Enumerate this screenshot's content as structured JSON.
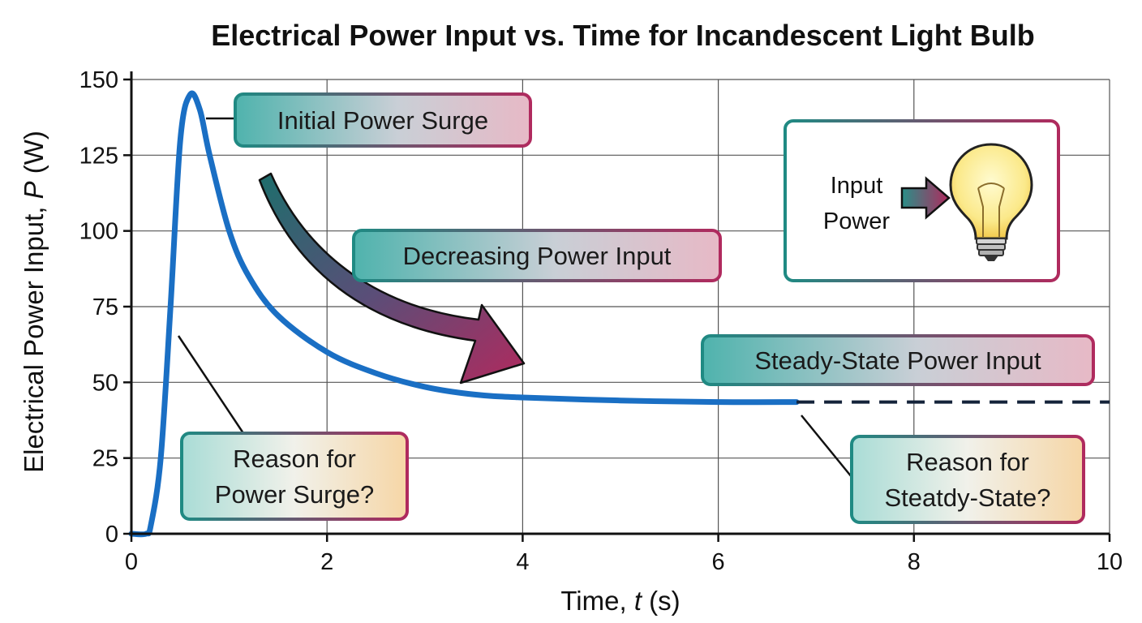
{
  "chart_data": {
    "type": "line",
    "title": "Electrical Power Input vs. Time for Incandescent Light Bulb",
    "xlabel_prefix": "Time, ",
    "xlabel_var": "t",
    "xlabel_suffix": " (s)",
    "ylabel_prefix": "Electrical Power Input, ",
    "ylabel_var": "P",
    "ylabel_suffix": " (W)",
    "xlim": [
      0,
      10
    ],
    "ylim": [
      0,
      150
    ],
    "x_ticks": [
      "0",
      "2",
      "4",
      "6",
      "8",
      "10"
    ],
    "y_ticks": [
      "0",
      "25",
      "50",
      "75",
      "100",
      "125",
      "150"
    ],
    "grid": true,
    "series": [
      {
        "color": "#1a6fc4",
        "x": [
          0,
          0.15,
          0.2,
          0.3,
          0.4,
          0.5,
          0.6,
          0.7,
          0.8,
          1.0,
          1.2,
          1.5,
          2.0,
          2.5,
          3.0,
          3.5,
          4.0,
          5.0,
          6.0,
          6.8
        ],
        "y": [
          0,
          0,
          3,
          25,
          75,
          130,
          145,
          140,
          125,
          100,
          85,
          72,
          60,
          53,
          48.5,
          46,
          45,
          44,
          43.5,
          43.5
        ]
      }
    ],
    "steady_state_dashed": {
      "x": [
        6.8,
        10
      ],
      "y": 43.5,
      "color": "#14233a"
    },
    "annotations": [
      {
        "text": [
          "Initial Power Surge"
        ]
      },
      {
        "text": [
          "Decreasing Power Input"
        ]
      },
      {
        "text": [
          "Steady-State Power Input"
        ]
      },
      {
        "text": [
          "Reason for",
          "Power Surge?"
        ]
      },
      {
        "text": [
          "Reason for",
          "Steatdy-State?"
        ]
      }
    ],
    "inset": {
      "text": [
        "Input",
        "Power"
      ],
      "icon": "lightbulb-icon",
      "arrow_icon": "arrow-right-icon"
    },
    "colors": {
      "teal": "#2a8f88",
      "magenta": "#b02a5e",
      "curve": "#1a6fc4",
      "grid": "#555555"
    }
  }
}
